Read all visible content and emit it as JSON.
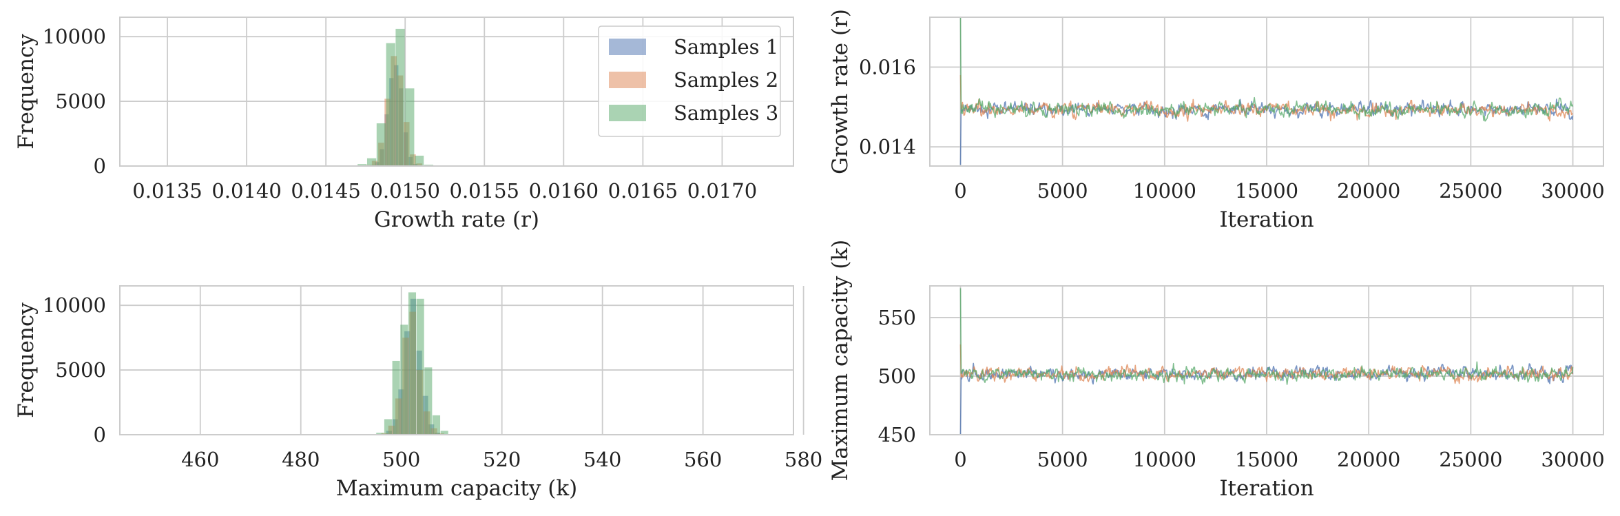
{
  "chart_data": [
    {
      "type": "histogram",
      "xlabel": "Growth rate (r)",
      "ylabel": "Frequency",
      "xlim": [
        0.0132,
        0.01745
      ],
      "ylim": [
        0,
        11500
      ],
      "xticks": [
        0.0135,
        0.014,
        0.0145,
        0.015,
        0.0155,
        0.016,
        0.0165,
        0.017
      ],
      "xtick_labels": [
        "0.0135",
        "0.0140",
        "0.0145",
        "0.0150",
        "0.0155",
        "0.0160",
        "0.0165",
        "0.0170"
      ],
      "yticks": [
        0,
        5000,
        10000
      ],
      "ytick_labels": [
        "0",
        "5000",
        "10000"
      ],
      "grid": true,
      "legend_position": "top-right",
      "series": [
        {
          "name": "Samples 1",
          "color": "#4C72B0",
          "bins": [
            [
              0.01478,
              0.01481
            ],
            [
              0.01481,
              0.01484
            ],
            [
              0.01484,
              0.01487
            ],
            [
              0.01487,
              0.0149
            ],
            [
              0.0149,
              0.01493
            ],
            [
              0.01493,
              0.01496
            ],
            [
              0.01496,
              0.01499
            ],
            [
              0.01499,
              0.01502
            ],
            [
              0.01502,
              0.01505
            ],
            [
              0.01505,
              0.01508
            ],
            [
              0.01508,
              0.01511
            ]
          ],
          "counts": [
            80,
            300,
            1300,
            4000,
            6800,
            7800,
            6000,
            2600,
            700,
            150,
            40
          ]
        },
        {
          "name": "Samples 2",
          "color": "#DD8452",
          "bins": [
            [
              0.01475,
              0.01479
            ],
            [
              0.01479,
              0.01483
            ],
            [
              0.01483,
              0.01487
            ],
            [
              0.01487,
              0.01491
            ],
            [
              0.01491,
              0.01495
            ],
            [
              0.01495,
              0.01499
            ],
            [
              0.01499,
              0.01503
            ],
            [
              0.01503,
              0.01507
            ],
            [
              0.01507,
              0.01511
            ],
            [
              0.01511,
              0.01515
            ]
          ],
          "counts": [
            80,
            400,
            1800,
            5200,
            8500,
            7000,
            3400,
            900,
            200,
            40
          ]
        },
        {
          "name": "Samples 3",
          "color": "#55A868",
          "bins": [
            [
              0.0147,
              0.01476
            ],
            [
              0.01476,
              0.01482
            ],
            [
              0.01482,
              0.01488
            ],
            [
              0.01488,
              0.01494
            ],
            [
              0.01494,
              0.015
            ],
            [
              0.015,
              0.01506
            ],
            [
              0.01506,
              0.01512
            ],
            [
              0.01512,
              0.01518
            ]
          ],
          "counts": [
            150,
            600,
            3300,
            9500,
            10600,
            6000,
            800,
            100
          ]
        }
      ]
    },
    {
      "type": "line",
      "xlabel": "Iteration",
      "ylabel": "Growth rate (r)",
      "xlim": [
        -1500,
        31500
      ],
      "ylim": [
        0.01352,
        0.01725
      ],
      "xticks": [
        0,
        5000,
        10000,
        15000,
        20000,
        25000,
        30000
      ],
      "xtick_labels": [
        "0",
        "5000",
        "10000",
        "15000",
        "20000",
        "25000",
        "30000"
      ],
      "yticks": [
        0.014,
        0.016
      ],
      "ytick_labels": [
        "0.014",
        "0.016"
      ],
      "grid": true,
      "n_iterations": 30000,
      "series": [
        {
          "name": "Samples 1",
          "color": "#4C72B0",
          "start": 0.01355,
          "mean": 0.01495,
          "sd": 7e-05
        },
        {
          "name": "Samples 2",
          "color": "#DD8452",
          "start": 0.0158,
          "mean": 0.01494,
          "sd": 7e-05
        },
        {
          "name": "Samples 3",
          "color": "#55A868",
          "start": 0.01725,
          "mean": 0.01493,
          "sd": 7e-05
        }
      ]
    },
    {
      "type": "histogram",
      "xlabel": "Maximum capacity (k)",
      "ylabel": "Frequency",
      "xlim": [
        444,
        578
      ],
      "ylim": [
        0,
        11500
      ],
      "xticks": [
        460,
        480,
        500,
        520,
        540,
        560,
        580
      ],
      "xtick_labels": [
        "460",
        "480",
        "500",
        "520",
        "540",
        "560",
        "580"
      ],
      "yticks": [
        0,
        5000,
        10000
      ],
      "ytick_labels": [
        "0",
        "5000",
        "10000"
      ],
      "grid": true,
      "series": [
        {
          "name": "Samples 1",
          "color": "#4C72B0",
          "bins": [
            [
              497,
              498.2
            ],
            [
              498.2,
              499.4
            ],
            [
              499.4,
              500.6
            ],
            [
              500.6,
              501.8
            ],
            [
              501.8,
              503
            ],
            [
              503,
              504.2
            ],
            [
              504.2,
              505.4
            ],
            [
              505.4,
              506.6
            ],
            [
              506.6,
              507.8
            ]
          ],
          "counts": [
            300,
            1200,
            3500,
            8000,
            10500,
            6500,
            3000,
            800,
            150
          ]
        },
        {
          "name": "Samples 2",
          "color": "#DD8452",
          "bins": [
            [
              496,
              497.4
            ],
            [
              497.4,
              498.8
            ],
            [
              498.8,
              500.2
            ],
            [
              500.2,
              501.6
            ],
            [
              501.6,
              503
            ],
            [
              503,
              504.4
            ],
            [
              504.4,
              505.8
            ],
            [
              505.8,
              507.2
            ],
            [
              507.2,
              508.6
            ]
          ],
          "counts": [
            120,
            700,
            2800,
            7500,
            9500,
            5000,
            1800,
            500,
            100
          ]
        },
        {
          "name": "Samples 3",
          "color": "#55A868",
          "bins": [
            [
              495,
              496.6
            ],
            [
              496.6,
              498.2
            ],
            [
              498.2,
              499.8
            ],
            [
              499.8,
              501.4
            ],
            [
              501.4,
              503
            ],
            [
              503,
              504.6
            ],
            [
              504.6,
              506.2
            ],
            [
              506.2,
              507.8
            ],
            [
              507.8,
              509.4
            ]
          ],
          "counts": [
            150,
            1200,
            5700,
            8500,
            11000,
            10500,
            5200,
            1500,
            300
          ]
        }
      ]
    },
    {
      "type": "line",
      "xlabel": "Iteration",
      "ylabel": "Maximum capacity (k)",
      "xlim": [
        -1500,
        31500
      ],
      "ylim": [
        450,
        577
      ],
      "xticks": [
        0,
        5000,
        10000,
        15000,
        20000,
        25000,
        30000
      ],
      "xtick_labels": [
        "0",
        "5000",
        "10000",
        "15000",
        "20000",
        "25000",
        "30000"
      ],
      "yticks": [
        450,
        500,
        550
      ],
      "ytick_labels": [
        "450",
        "500",
        "550"
      ],
      "grid": true,
      "n_iterations": 30000,
      "series": [
        {
          "name": "Samples 1",
          "color": "#4C72B0",
          "start": 450,
          "mean": 502.2,
          "sd": 2.3
        },
        {
          "name": "Samples 2",
          "color": "#DD8452",
          "start": 527,
          "mean": 502.0,
          "sd": 2.3
        },
        {
          "name": "Samples 3",
          "color": "#55A868",
          "start": 575,
          "mean": 501.8,
          "sd": 2.3
        }
      ]
    }
  ]
}
